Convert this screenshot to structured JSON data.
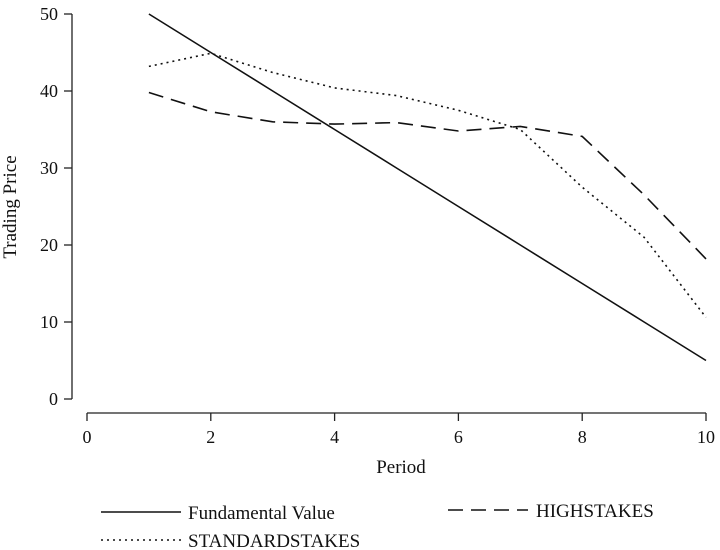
{
  "chart_data": {
    "type": "line",
    "title": "",
    "xlabel": "Period",
    "ylabel": "Trading Price",
    "xlim": [
      0,
      10
    ],
    "ylim": [
      0,
      50
    ],
    "xticks": [
      0,
      2,
      4,
      6,
      8,
      10
    ],
    "yticks": [
      0,
      10,
      20,
      30,
      40,
      50
    ],
    "grid": false,
    "legend_position": "bottom",
    "series": [
      {
        "name": "Fundamental Value",
        "style": "solid",
        "x": [
          1,
          2,
          3,
          4,
          5,
          6,
          7,
          8,
          9,
          10
        ],
        "values": [
          50,
          45,
          40,
          35,
          30,
          25,
          20,
          15,
          10,
          5
        ]
      },
      {
        "name": "HIGHSTAKES",
        "style": "dashed",
        "x": [
          1,
          2,
          3,
          4,
          5,
          6,
          7,
          8,
          9,
          10
        ],
        "values": [
          39.8,
          37.3,
          36.0,
          35.7,
          35.9,
          34.8,
          35.4,
          34.1,
          26.5,
          18.2
        ]
      },
      {
        "name": "STANDARDSTAKES",
        "style": "dotted",
        "x": [
          1,
          2,
          3,
          4,
          5,
          6,
          7,
          8,
          9,
          10
        ],
        "values": [
          43.2,
          44.9,
          42.4,
          40.4,
          39.4,
          37.5,
          35.0,
          27.5,
          21.0,
          10.6
        ]
      }
    ]
  }
}
